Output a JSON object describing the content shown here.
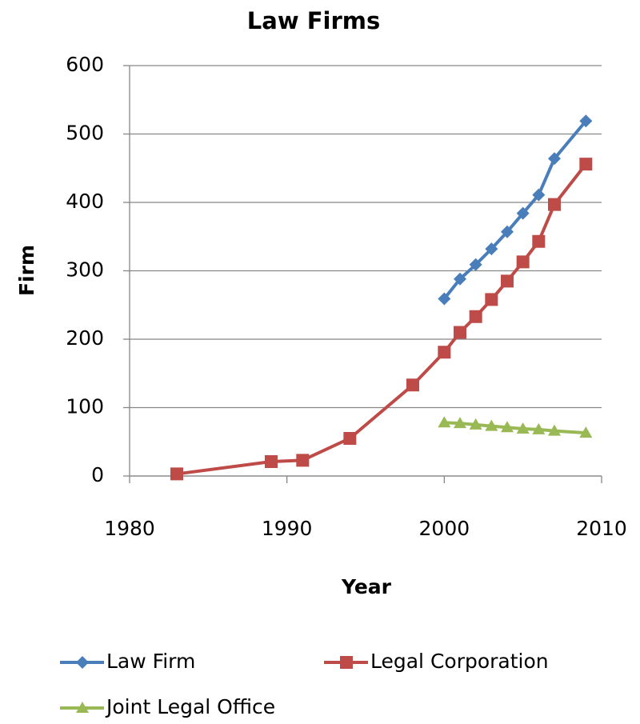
{
  "chart_data": {
    "type": "line",
    "title": "Law Firms",
    "xlabel": "Year",
    "ylabel": "Firm",
    "xlim": [
      1980,
      2010
    ],
    "xticks": [
      1980,
      1990,
      2000,
      2010
    ],
    "ylim": [
      0,
      600
    ],
    "yticks": [
      0,
      100,
      200,
      300,
      400,
      500,
      600
    ],
    "grid": true,
    "legend": "bottom",
    "series": [
      {
        "name": "Law Firm",
        "color": "#4a7ebb",
        "marker": "diamond",
        "x": [
          2000,
          2001,
          2002,
          2003,
          2004,
          2005,
          2006,
          2007,
          2009
        ],
        "values": [
          259,
          288,
          309,
          332,
          357,
          384,
          411,
          464,
          519
        ]
      },
      {
        "name": "Legal Corporation",
        "color": "#be4b48",
        "marker": "square",
        "x": [
          1983,
          1989,
          1991,
          1994,
          1998,
          2000,
          2001,
          2002,
          2003,
          2004,
          2005,
          2006,
          2007,
          2009
        ],
        "values": [
          3,
          21,
          23,
          55,
          133,
          181,
          210,
          233,
          258,
          285,
          313,
          343,
          397,
          456
        ]
      },
      {
        "name": "Joint Legal Office",
        "color": "#98b954",
        "marker": "triangle",
        "x": [
          2000,
          2001,
          2002,
          2003,
          2004,
          2005,
          2006,
          2007,
          2009
        ],
        "values": [
          78,
          77,
          75,
          73,
          71,
          69,
          68,
          66,
          63
        ]
      }
    ]
  }
}
